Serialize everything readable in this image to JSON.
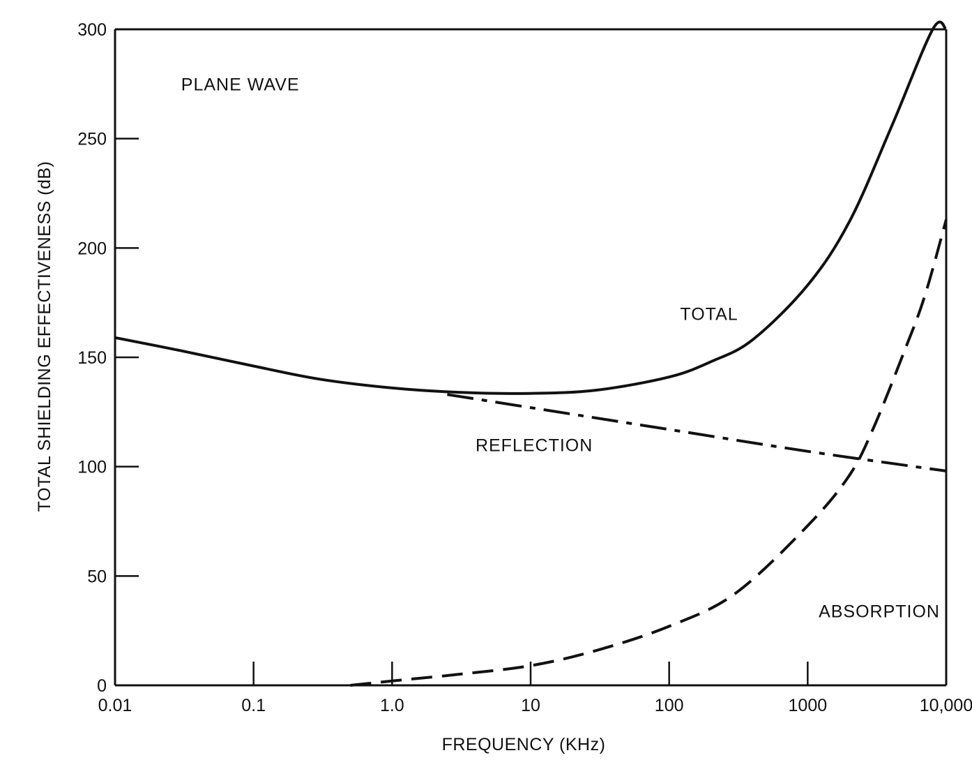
{
  "chart_data": {
    "type": "line",
    "title": "",
    "xlabel": "FREQUENCY (KHz)",
    "ylabel": "TOTAL SHIELDING EFFECTIVENESS (dB)",
    "x_scale": "log",
    "xlim": [
      0.01,
      10000
    ],
    "ylim": [
      0,
      300
    ],
    "grid": false,
    "x_ticks": [
      {
        "value": 0.01,
        "label": "0.01"
      },
      {
        "value": 0.1,
        "label": "0.1"
      },
      {
        "value": 1,
        "label": "1.0"
      },
      {
        "value": 10,
        "label": "10"
      },
      {
        "value": 100,
        "label": "100"
      },
      {
        "value": 1000,
        "label": "1000"
      },
      {
        "value": 10000,
        "label": "10,000"
      }
    ],
    "y_ticks": [
      {
        "value": 0,
        "label": "0"
      },
      {
        "value": 50,
        "label": "50"
      },
      {
        "value": 100,
        "label": "100"
      },
      {
        "value": 150,
        "label": "150"
      },
      {
        "value": 200,
        "label": "200"
      },
      {
        "value": 250,
        "label": "250"
      },
      {
        "value": 300,
        "label": "300"
      }
    ],
    "annotations": [
      {
        "text": "PLANE WAVE",
        "x": 0.03,
        "y": 275
      },
      {
        "text": "TOTAL",
        "x": 120,
        "y": 170
      },
      {
        "text": "REFLECTION",
        "x": 4,
        "y": 110
      },
      {
        "text": "ABSORPTION",
        "x": 1200,
        "y": 34
      }
    ],
    "series": [
      {
        "name": "TOTAL",
        "line_style": "solid",
        "x": [
          0.01,
          0.03,
          0.1,
          0.3,
          1,
          3,
          10,
          30,
          100,
          200,
          400,
          1000,
          2000,
          4000,
          8000,
          10000
        ],
        "y": [
          159,
          153,
          146,
          140,
          136,
          134,
          133.5,
          135,
          141,
          148,
          158,
          183,
          212,
          255,
          300,
          300
        ]
      },
      {
        "name": "REFLECTION",
        "line_style": "dash-dot",
        "x": [
          2.5,
          10,
          100,
          1000,
          10000
        ],
        "y": [
          133,
          127,
          117,
          107,
          98
        ]
      },
      {
        "name": "ABSORPTION",
        "line_style": "dashed",
        "x": [
          0.5,
          1,
          3,
          10,
          30,
          100,
          300,
          1000,
          2000,
          3000,
          5000,
          7000,
          10000
        ],
        "y": [
          0,
          2,
          5,
          9,
          16,
          27,
          42,
          73,
          96,
          118,
          153,
          178,
          213
        ]
      }
    ]
  }
}
